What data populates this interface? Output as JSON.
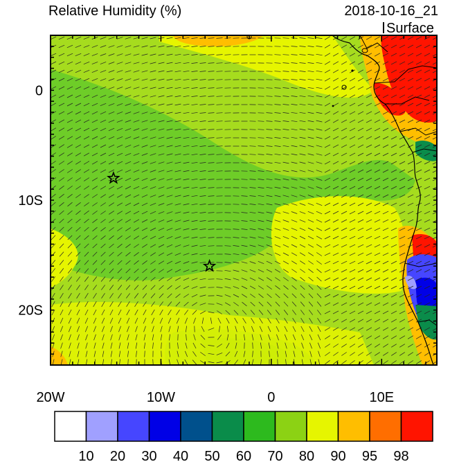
{
  "header": {
    "title": "Relative Humidity (%)",
    "datetime": "2018-10-16_21",
    "level": "Surface"
  },
  "axes": {
    "x_ticks": [
      {
        "label": "20W",
        "lon": -20
      },
      {
        "label": "10W",
        "lon": -10
      },
      {
        "label": "0",
        "lon": 0
      },
      {
        "label": "10E",
        "lon": 10
      }
    ],
    "y_ticks": [
      {
        "label": "0",
        "lat": 0
      },
      {
        "label": "10S",
        "lat": -10
      },
      {
        "label": "20S",
        "lat": -20
      }
    ],
    "lon_range": [
      -20,
      15
    ],
    "lat_range": [
      -25,
      5
    ]
  },
  "markers": [
    {
      "name": "star",
      "lon": -14.3,
      "lat": -8.0
    },
    {
      "name": "star",
      "lon": -5.6,
      "lat": -16.0
    }
  ],
  "colorbar": {
    "colors": [
      "#ffffff",
      "#a0a0ff",
      "#4646ff",
      "#0000e6",
      "#00508c",
      "#0a8c4a",
      "#2dba1e",
      "#8cd214",
      "#e6f500",
      "#ffbe00",
      "#ff6e00",
      "#ff1400"
    ],
    "labels": [
      "10",
      "20",
      "30",
      "40",
      "50",
      "60",
      "70",
      "80",
      "90",
      "95",
      "98"
    ]
  },
  "palette": {
    "base": "#a6dc1e",
    "moist": "#e6f500",
    "dry": "#6ecd28",
    "drier": "#3cbe28",
    "wet": "#ffbe00",
    "wetter": "#ff6e00",
    "sat": "#ff1400",
    "low": "#4646ff",
    "low2": "#0000e6",
    "low3": "#a0a0ff",
    "green60": "#0a8c4a",
    "wind": "#222222"
  }
}
